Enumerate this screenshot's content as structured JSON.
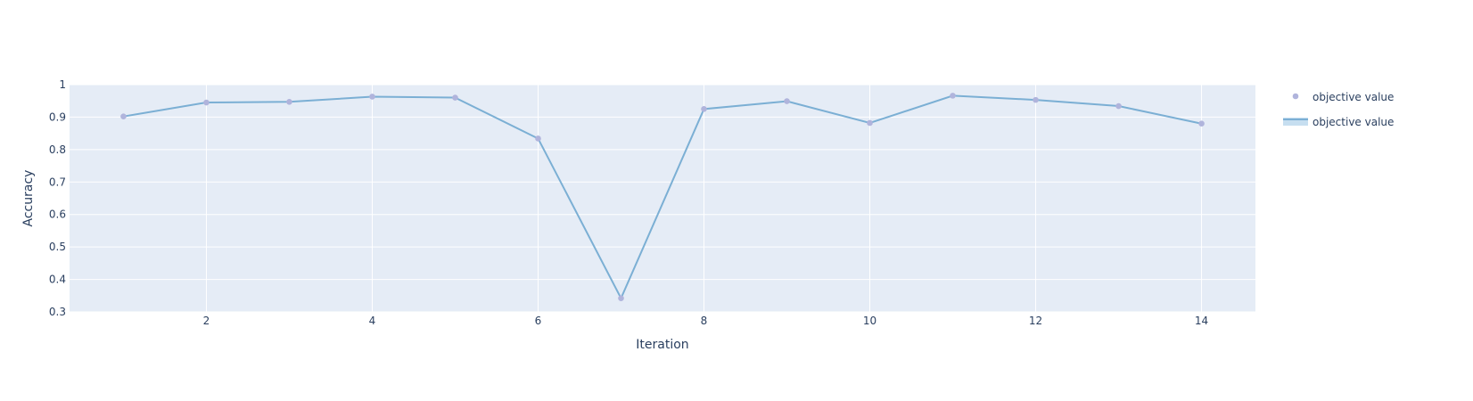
{
  "chart_data": {
    "type": "line",
    "title": "",
    "xlabel": "Iteration",
    "ylabel": "Accuracy",
    "xlim": [
      0.35,
      14.65
    ],
    "ylim": [
      0.3,
      1.0
    ],
    "xticks": [
      2,
      4,
      6,
      8,
      10,
      12,
      14
    ],
    "yticks": [
      0.3,
      0.4,
      0.5,
      0.6,
      0.7,
      0.8,
      0.9,
      1
    ],
    "x": [
      1,
      2,
      3,
      4,
      5,
      6,
      7,
      8,
      9,
      10,
      11,
      12,
      13,
      14
    ],
    "series": [
      {
        "name": "objective value",
        "mode": "markers",
        "color": "#b0b4dc",
        "values": [
          0.902,
          0.945,
          0.947,
          0.963,
          0.96,
          0.834,
          0.342,
          0.925,
          0.949,
          0.882,
          0.966,
          0.953,
          0.934,
          0.88
        ]
      },
      {
        "name": "objective value",
        "mode": "lines",
        "color": "#7bafd4",
        "values": [
          0.902,
          0.945,
          0.947,
          0.963,
          0.96,
          0.834,
          0.342,
          0.925,
          0.949,
          0.882,
          0.966,
          0.953,
          0.934,
          0.88
        ]
      }
    ],
    "grid": true,
    "plot_background": "#e5ecf6",
    "legend_position": "top-right"
  }
}
